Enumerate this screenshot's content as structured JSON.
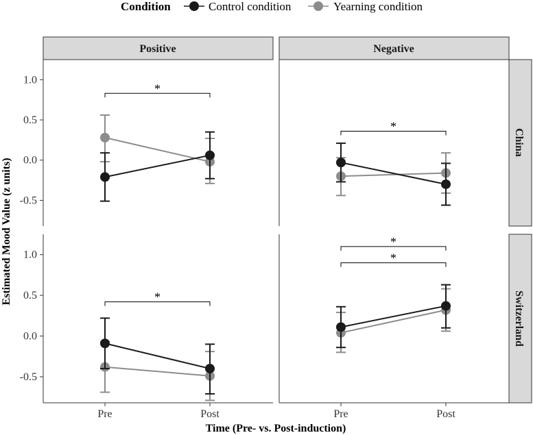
{
  "chart_data": {
    "type": "line",
    "title": "",
    "xlabel": "Time (Pre- vs. Post-induction)",
    "ylabel": "Estimated Mood Value (z units)",
    "ylim": [
      -0.82,
      1.25
    ],
    "yticks": [
      1.0,
      0.5,
      0.0,
      -0.5
    ],
    "ytick_labels": [
      "1.0",
      "0.5",
      "0.0",
      "-0.5"
    ],
    "categories": [
      "Pre",
      "Post"
    ],
    "legend": {
      "title": "Condition",
      "position": "top",
      "entries": [
        {
          "name": "Control condition",
          "color": "#1a1a1a"
        },
        {
          "name": "Yearning condition",
          "color": "#8c8c8c"
        }
      ]
    },
    "columns": [
      "Positive",
      "Negative"
    ],
    "rows": [
      "China",
      "Switzerland"
    ],
    "panels": [
      {
        "column": "Positive",
        "row": "China",
        "series": [
          {
            "name": "Control condition",
            "color": "#1a1a1a",
            "values": [
              -0.21,
              0.06
            ],
            "lower": [
              -0.51,
              -0.23
            ],
            "upper": [
              0.09,
              0.35
            ]
          },
          {
            "name": "Yearning condition",
            "color": "#8c8c8c",
            "values": [
              0.28,
              -0.02
            ],
            "lower": [
              -0.02,
              -0.29
            ],
            "upper": [
              0.56,
              0.27
            ]
          }
        ],
        "significance": [
          {
            "label": "*",
            "level": 0.83
          }
        ]
      },
      {
        "column": "Negative",
        "row": "China",
        "series": [
          {
            "name": "Control condition",
            "color": "#1a1a1a",
            "values": [
              -0.03,
              -0.3
            ],
            "lower": [
              -0.27,
              -0.56
            ],
            "upper": [
              0.21,
              -0.04
            ]
          },
          {
            "name": "Yearning condition",
            "color": "#8c8c8c",
            "values": [
              -0.2,
              -0.16
            ],
            "lower": [
              -0.44,
              -0.41
            ],
            "upper": [
              0.03,
              0.09
            ]
          }
        ],
        "significance": [
          {
            "label": "*",
            "level": 0.36
          }
        ]
      },
      {
        "column": "Positive",
        "row": "Switzerland",
        "series": [
          {
            "name": "Control condition",
            "color": "#1a1a1a",
            "values": [
              -0.09,
              -0.4
            ],
            "lower": [
              -0.4,
              -0.71
            ],
            "upper": [
              0.22,
              -0.1
            ]
          },
          {
            "name": "Yearning condition",
            "color": "#8c8c8c",
            "values": [
              -0.38,
              -0.49
            ],
            "lower": [
              -0.69,
              -0.79
            ],
            "upper": [
              -0.07,
              -0.19
            ]
          }
        ],
        "significance": [
          {
            "label": "*",
            "level": 0.42
          }
        ]
      },
      {
        "column": "Negative",
        "row": "Switzerland",
        "series": [
          {
            "name": "Control condition",
            "color": "#1a1a1a",
            "values": [
              0.11,
              0.37
            ],
            "lower": [
              -0.14,
              0.1
            ],
            "upper": [
              0.36,
              0.63
            ]
          },
          {
            "name": "Yearning condition",
            "color": "#8c8c8c",
            "values": [
              0.04,
              0.32
            ],
            "lower": [
              -0.2,
              0.06
            ],
            "upper": [
              0.29,
              0.58
            ]
          }
        ],
        "significance": [
          {
            "label": "*",
            "level": 1.1
          },
          {
            "label": "*",
            "level": 0.9
          }
        ]
      }
    ]
  }
}
